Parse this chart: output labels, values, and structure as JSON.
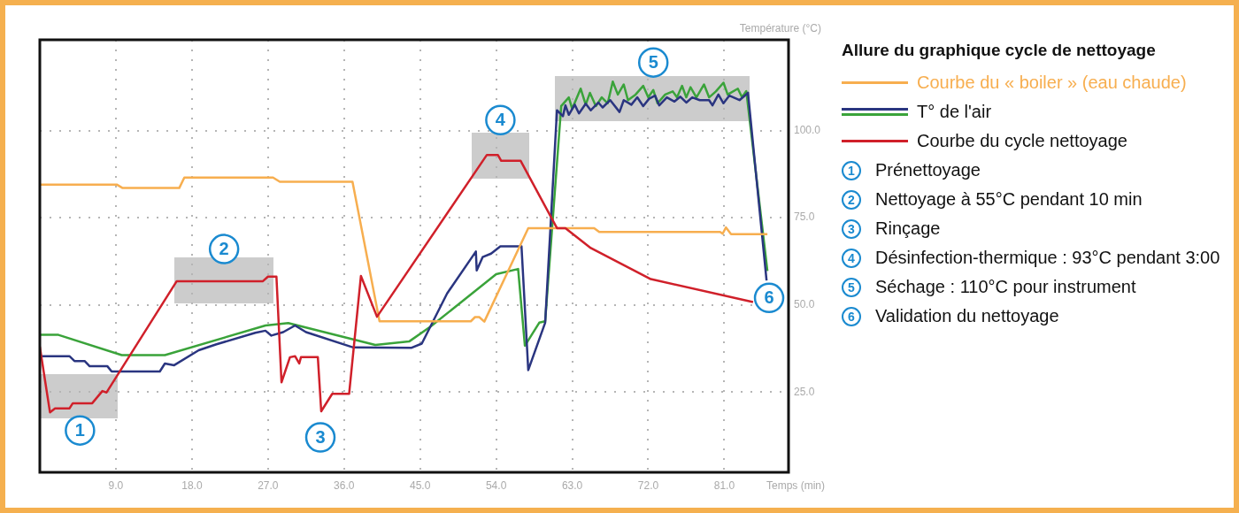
{
  "chart_data": {
    "type": "line",
    "title": "Allure du graphique cycle de nettoyage",
    "xlabel": "Temps (min)",
    "ylabel": "Température (°C)",
    "xlim": [
      0,
      88.6
    ],
    "ylim": [
      2,
      126
    ],
    "xticks": [
      {
        "value": 9,
        "label": "9.0"
      },
      {
        "value": 18,
        "label": "18.0"
      },
      {
        "value": 27,
        "label": "27.0"
      },
      {
        "value": 36,
        "label": "36.0"
      },
      {
        "value": 45,
        "label": "45.0"
      },
      {
        "value": 54,
        "label": "54.0"
      },
      {
        "value": 63,
        "label": "63.0"
      },
      {
        "value": 72,
        "label": "72.0"
      },
      {
        "value": 81,
        "label": "81.0"
      }
    ],
    "yticks": [
      {
        "value": 25,
        "label": "25.0"
      },
      {
        "value": 50,
        "label": "50.0"
      },
      {
        "value": 75,
        "label": "75.0"
      },
      {
        "value": 100,
        "label": "100.0"
      }
    ],
    "grid": true,
    "legend": "right",
    "marker": "none",
    "line_style": "solid",
    "series": [
      {
        "name": "Courbe du « boiler » (eau chaude)",
        "color": "#f7ae4f",
        "x": [
          0,
          9.1,
          9.8,
          16.5,
          17.1,
          27.6,
          28.4,
          37.0,
          40.2,
          51.0,
          51.5,
          52.0,
          52.6,
          57.8,
          65.6,
          66.2,
          80.5,
          80.8,
          81.2,
          81.8,
          86.1
        ],
        "values": [
          84.5,
          84.5,
          83.5,
          83.5,
          86.5,
          86.5,
          85.3,
          85.3,
          45.3,
          45.3,
          46.5,
          46.5,
          45.2,
          72,
          72,
          70.9,
          70.9,
          70.4,
          72.2,
          70.3,
          70.3
        ]
      },
      {
        "name": "T° de l'air",
        "color": "#2a3580",
        "x": [
          0,
          3.5,
          4.1,
          5.3,
          5.9,
          8.0,
          8.5,
          14.2,
          14.8,
          15.9,
          18.8,
          20.9,
          25.5,
          26.7,
          27.4,
          28.8,
          30.2,
          31.5,
          37.1,
          44.0,
          45.2,
          48.2,
          51.6,
          51.7,
          52.4,
          53.4,
          54.5,
          57.0,
          57.8,
          59.8,
          61.2,
          61.9,
          62.2,
          62.6,
          63.3,
          63.8,
          64.6,
          65.2,
          66.1,
          66.6,
          67.5,
          68.6,
          69.1,
          70.0,
          70.7,
          71.4,
          72.1,
          72.8,
          73.3,
          74.2,
          75.1,
          75.8,
          76.5,
          77.2,
          78.1,
          79.2,
          79.6,
          80.3,
          80.9,
          81.6,
          82.8,
          83.8,
          86.0
        ],
        "values": [
          35.3,
          35.3,
          33.9,
          33.9,
          32.4,
          32.4,
          30.9,
          30.9,
          33.2,
          32.7,
          37,
          38.7,
          42,
          42.6,
          41.2,
          42.2,
          44.1,
          42.2,
          37.8,
          37.7,
          38.9,
          53.3,
          65.3,
          59.9,
          63.7,
          64.7,
          66.8,
          66.8,
          31.3,
          44.9,
          105.8,
          104.1,
          107.2,
          104.5,
          107.4,
          104.9,
          107.7,
          105.8,
          108,
          106.6,
          108.7,
          105.3,
          108.7,
          107.4,
          109.5,
          107,
          109.1,
          110,
          107.2,
          109.5,
          108.3,
          109.7,
          108,
          109.5,
          108.7,
          108.7,
          107.2,
          110.3,
          107.8,
          110,
          108.7,
          110.8,
          57
        ]
      },
      {
        "color": "#3aa33a",
        "x": [
          0,
          2.2,
          9.7,
          14.8,
          26.7,
          29.4,
          39.7,
          43.7,
          46.2,
          54.0,
          56.6,
          57.4,
          59.1,
          59.8,
          61.7,
          62.6,
          63.0,
          64.0,
          64.6,
          65.1,
          65.8,
          66.5,
          67.2,
          67.8,
          68.4,
          69.1,
          69.6,
          70.5,
          71.4,
          72.0,
          72.6,
          73.1,
          74.0,
          74.9,
          75.4,
          76.0,
          76.5,
          77.0,
          77.7,
          78.6,
          79.2,
          80.0,
          80.9,
          81.4,
          82.6,
          83.1,
          83.6,
          86.1
        ],
        "values": [
          41.4,
          41.4,
          35.6,
          35.6,
          44.1,
          44.8,
          38.5,
          39.5,
          43.7,
          58.8,
          60.3,
          38.3,
          44.9,
          45.3,
          107,
          109.5,
          106.2,
          112,
          107.4,
          110.8,
          107,
          109.5,
          107.8,
          114,
          110.3,
          113.2,
          108.7,
          110.3,
          112.8,
          109.5,
          111.6,
          107.8,
          110.3,
          111.2,
          109.5,
          112.8,
          109.5,
          112.4,
          109.5,
          113.2,
          109.5,
          111.2,
          113.7,
          110.3,
          112,
          109.5,
          111.3,
          59.7
        ]
      },
      {
        "name": "Courbe du cycle nettoyage",
        "color": "#d0202a",
        "x": [
          0,
          1.2,
          1.8,
          3.5,
          3.9,
          6.2,
          7.4,
          7.9,
          16.2,
          26.4,
          27.0,
          28.0,
          28.6,
          29.6,
          30.2,
          30.7,
          30.9,
          32.9,
          33.3,
          34.6,
          36.6,
          38.0,
          39.9,
          52.9,
          54.2,
          54.6,
          56.9,
          61.2,
          62.2,
          65.2,
          72.3,
          84.4
        ],
        "values": [
          38,
          19.2,
          20.3,
          20.3,
          21.8,
          21.8,
          25.3,
          24.9,
          56.8,
          56.8,
          58.1,
          58.1,
          27.8,
          35,
          35.3,
          33.2,
          35,
          35,
          19.5,
          24.5,
          24.5,
          58.3,
          46.6,
          93,
          93,
          91.3,
          91.3,
          72,
          72,
          66.3,
          57.4,
          50.8
        ]
      }
    ],
    "annotations": [
      {
        "text": "1",
        "x": 4.75,
        "y": 14
      },
      {
        "text": "2",
        "x": 21.8,
        "y": 66
      },
      {
        "text": "3",
        "x": 33.2,
        "y": 12
      },
      {
        "text": "4",
        "x": 54.5,
        "y": 103
      },
      {
        "text": "5",
        "x": 72.6,
        "y": 119.5
      },
      {
        "text": "6",
        "x": 86.3,
        "y": 52
      },
      "Prénettoyage",
      "Nettoyage à 55°C pendant 10 min",
      "Rinçage",
      "Désinfection-thermique : 93°C pendant 3:00",
      "Séchage : 110°C pour instrument",
      "Validation du nettoyage"
    ]
  }
}
